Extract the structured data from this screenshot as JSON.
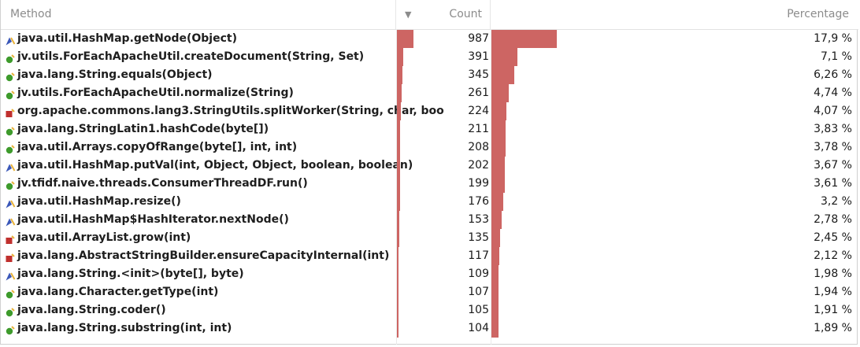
{
  "header": {
    "method_label": "Method",
    "count_label": "Count",
    "percentage_label": "Percentage",
    "sort_indicator": "▼"
  },
  "colors": {
    "bar": "#cd6563",
    "green_icon": "#3e9b2c",
    "red_icon": "#c0302e",
    "blue_icon": "#3a57b8",
    "yellow_icon": "#e8b23a"
  },
  "max_count": 987,
  "rows": [
    {
      "method": "java.util.HashMap.getNode(Object)",
      "count": "987",
      "percentage": "17,9 %",
      "pct": 17.9,
      "icon": "blue-pencil-icon"
    },
    {
      "method": "jv.utils.ForEachApacheUtil.createDocument(String, Set)",
      "count": "391",
      "percentage": "7,1 %",
      "pct": 7.1,
      "icon": "green-dot-icon"
    },
    {
      "method": "java.lang.String.equals(Object)",
      "count": "345",
      "percentage": "6,26 %",
      "pct": 6.26,
      "icon": "green-dot-icon"
    },
    {
      "method": "jv.utils.ForEachApacheUtil.normalize(String)",
      "count": "261",
      "percentage": "4,74 %",
      "pct": 4.74,
      "icon": "green-dot-icon"
    },
    {
      "method": "org.apache.commons.lang3.StringUtils.splitWorker(String, char, boo",
      "count": "224",
      "percentage": "4,07 %",
      "pct": 4.07,
      "icon": "red-square-icon"
    },
    {
      "method": "java.lang.StringLatin1.hashCode(byte[])",
      "count": "211",
      "percentage": "3,83 %",
      "pct": 3.83,
      "icon": "green-dot-icon"
    },
    {
      "method": "java.util.Arrays.copyOfRange(byte[], int, int)",
      "count": "208",
      "percentage": "3,78 %",
      "pct": 3.78,
      "icon": "green-dot-icon"
    },
    {
      "method": "java.util.HashMap.putVal(int, Object, Object, boolean, boolean)",
      "count": "202",
      "percentage": "3,67 %",
      "pct": 3.67,
      "icon": "blue-pencil-icon"
    },
    {
      "method": "jv.tfidf.naive.threads.ConsumerThreadDF.run()",
      "count": "199",
      "percentage": "3,61 %",
      "pct": 3.61,
      "icon": "green-dot-icon"
    },
    {
      "method": "java.util.HashMap.resize()",
      "count": "176",
      "percentage": "3,2 %",
      "pct": 3.2,
      "icon": "blue-pencil-icon"
    },
    {
      "method": "java.util.HashMap$HashIterator.nextNode()",
      "count": "153",
      "percentage": "2,78 %",
      "pct": 2.78,
      "icon": "blue-pencil-icon"
    },
    {
      "method": "java.util.ArrayList.grow(int)",
      "count": "135",
      "percentage": "2,45 %",
      "pct": 2.45,
      "icon": "red-square-icon"
    },
    {
      "method": "java.lang.AbstractStringBuilder.ensureCapacityInternal(int)",
      "count": "117",
      "percentage": "2,12 %",
      "pct": 2.12,
      "icon": "red-square-icon"
    },
    {
      "method": "java.lang.String.<init>(byte[], byte)",
      "count": "109",
      "percentage": "1,98 %",
      "pct": 1.98,
      "icon": "blue-pencil-icon"
    },
    {
      "method": "java.lang.Character.getType(int)",
      "count": "107",
      "percentage": "1,94 %",
      "pct": 1.94,
      "icon": "green-dot-icon"
    },
    {
      "method": "java.lang.String.coder()",
      "count": "105",
      "percentage": "1,91 %",
      "pct": 1.91,
      "icon": "green-dot-icon"
    },
    {
      "method": "java.lang.String.substring(int, int)",
      "count": "104",
      "percentage": "1,89 %",
      "pct": 1.89,
      "icon": "green-dot-icon"
    }
  ]
}
